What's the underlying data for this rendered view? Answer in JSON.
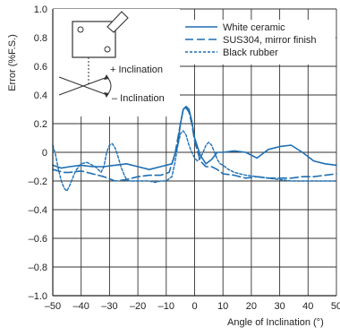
{
  "chart_data": {
    "type": "line",
    "xlabel": "Angle of Inclination (°)",
    "ylabel": "Error (%F.S.)",
    "xlim": [
      -50,
      50
    ],
    "ylim": [
      -1.0,
      1.0
    ],
    "x_ticks": [
      -50,
      -40,
      -30,
      -20,
      -10,
      0,
      10,
      20,
      30,
      40,
      50
    ],
    "y_ticks": [
      -1.0,
      -0.8,
      -0.6,
      -0.4,
      -0.2,
      0,
      0.2,
      0.4,
      0.6,
      0.8,
      1.0
    ],
    "x_tick_labels": [
      "–50",
      "–40",
      "–30",
      "–20",
      "–10",
      "0",
      "10",
      "20",
      "30",
      "40",
      "50"
    ],
    "y_tick_labels": [
      "–1.0",
      "–0.8",
      "–0.6",
      "–0.4",
      "–0.2",
      "0",
      "0.2",
      "0.4",
      "0.6",
      "0.8",
      "1.0"
    ],
    "grid": true,
    "legend_position": "top-right",
    "color": "#1f6fb2",
    "series": [
      {
        "name": "White ceramic",
        "dash": "solid",
        "x": [
          -50,
          -47,
          -44,
          -40,
          -36,
          -32,
          -28,
          -24,
          -20,
          -16,
          -12,
          -8,
          -6,
          -5,
          -4,
          -3,
          -2,
          -1,
          0,
          2,
          4,
          6,
          8,
          10,
          14,
          18,
          22,
          26,
          30,
          34,
          38,
          42,
          46,
          50
        ],
        "y": [
          -0.09,
          -0.11,
          -0.1,
          -0.09,
          -0.1,
          -0.1,
          -0.09,
          -0.08,
          -0.1,
          -0.12,
          -0.1,
          -0.08,
          0.05,
          0.2,
          0.3,
          0.32,
          0.3,
          0.22,
          0.1,
          -0.02,
          -0.08,
          -0.05,
          0.0,
          0.0,
          0.01,
          0.0,
          -0.04,
          0.02,
          0.04,
          0.05,
          0.0,
          -0.06,
          -0.08,
          -0.09
        ]
      },
      {
        "name": "SUS304, mirror finish",
        "dash": "dashed",
        "x": [
          -50,
          -48,
          -46,
          -44,
          -40,
          -36,
          -32,
          -28,
          -24,
          -20,
          -16,
          -12,
          -9,
          -7,
          -5,
          -4,
          -3,
          -2,
          -1,
          0,
          2,
          4,
          6,
          8,
          10,
          14,
          18,
          22,
          26,
          30,
          34,
          38,
          42,
          46,
          50
        ],
        "y": [
          -0.12,
          -0.13,
          -0.14,
          -0.14,
          -0.13,
          -0.15,
          -0.17,
          -0.2,
          -0.19,
          -0.17,
          -0.16,
          -0.16,
          -0.14,
          -0.02,
          0.2,
          0.3,
          0.31,
          0.28,
          0.2,
          0.08,
          -0.06,
          -0.1,
          -0.1,
          -0.12,
          -0.15,
          -0.16,
          -0.18,
          -0.17,
          -0.18,
          -0.18,
          -0.18,
          -0.17,
          -0.17,
          -0.16,
          -0.15
        ]
      },
      {
        "name": "Black rubber",
        "dash": "dotted",
        "x": [
          -50,
          -49,
          -48,
          -47,
          -46,
          -45,
          -44,
          -42,
          -40,
          -38,
          -35,
          -33,
          -32,
          -31,
          -30,
          -29,
          -28,
          -27,
          -26,
          -25,
          -24,
          -23,
          -22,
          -20,
          -18,
          -16,
          -14,
          -12,
          -10,
          -8,
          -7,
          -6,
          -5,
          -4,
          -3,
          -2,
          -1,
          0,
          1,
          2,
          3,
          4,
          5,
          6,
          7,
          8,
          9,
          10,
          12,
          14,
          18,
          22,
          26,
          30,
          34,
          38,
          42,
          46,
          50
        ],
        "y": [
          0.05,
          -0.02,
          -0.12,
          -0.2,
          -0.25,
          -0.27,
          -0.23,
          -0.13,
          -0.08,
          -0.07,
          -0.1,
          -0.14,
          -0.1,
          0.0,
          0.05,
          0.06,
          0.03,
          -0.03,
          -0.1,
          -0.15,
          -0.19,
          -0.2,
          -0.2,
          -0.2,
          -0.2,
          -0.2,
          -0.21,
          -0.2,
          -0.2,
          -0.17,
          -0.08,
          0.04,
          0.13,
          0.15,
          0.12,
          0.05,
          0.0,
          -0.04,
          -0.06,
          -0.04,
          0.0,
          0.05,
          0.07,
          0.05,
          0.0,
          -0.05,
          -0.08,
          -0.09,
          -0.12,
          -0.14,
          -0.16,
          -0.17,
          -0.18,
          -0.19,
          -0.2,
          -0.2,
          -0.2,
          -0.2,
          -0.2
        ]
      }
    ]
  },
  "inset": {
    "plus_label": "+ Inclination",
    "minus_label": "– Inclination"
  }
}
